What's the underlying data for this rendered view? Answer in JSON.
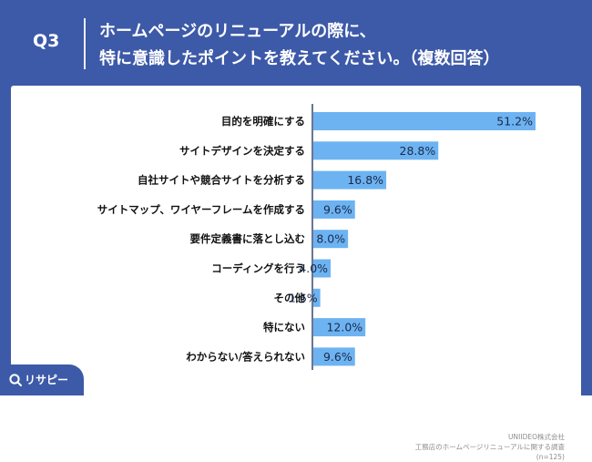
{
  "header": {
    "question_number": "Q3",
    "title_line1": "ホームページのリニューアルの際に、",
    "title_line2": "特に意識したポイントを教えてください。（複数回答）"
  },
  "footnote": {
    "company": "UNIIDEO株式会社",
    "survey": "工務店のホームページリニューアルに関する調査",
    "sample": "(n=125)"
  },
  "brand": {
    "name": "リサピー",
    "icon": "search-magnifier-icon"
  },
  "colors": {
    "background": "#3d5aa8",
    "bar": "#6db3f2",
    "axis": "#2a3a66"
  },
  "chart_data": {
    "type": "bar",
    "orientation": "horizontal",
    "unit": "%",
    "categories": [
      "目的を明確にする",
      "サイトデザインを決定する",
      "自社サイトや競合サイトを分析する",
      "サイトマップ、ワイヤーフレームを作成する",
      "要件定義書に落とし込む",
      "コーディングを行う",
      "その他",
      "特にない",
      "わからない/答えられない"
    ],
    "values": [
      51.2,
      28.8,
      16.8,
      9.6,
      8.0,
      4.0,
      1.6,
      12.0,
      9.6
    ],
    "value_labels": [
      "51.2%",
      "28.8%",
      "16.8%",
      "9.6%",
      "8.0%",
      "4.0%",
      "1.6%",
      "12.0%",
      "9.6%"
    ],
    "xlim": [
      0,
      55
    ],
    "grid": false,
    "legend": "none"
  }
}
